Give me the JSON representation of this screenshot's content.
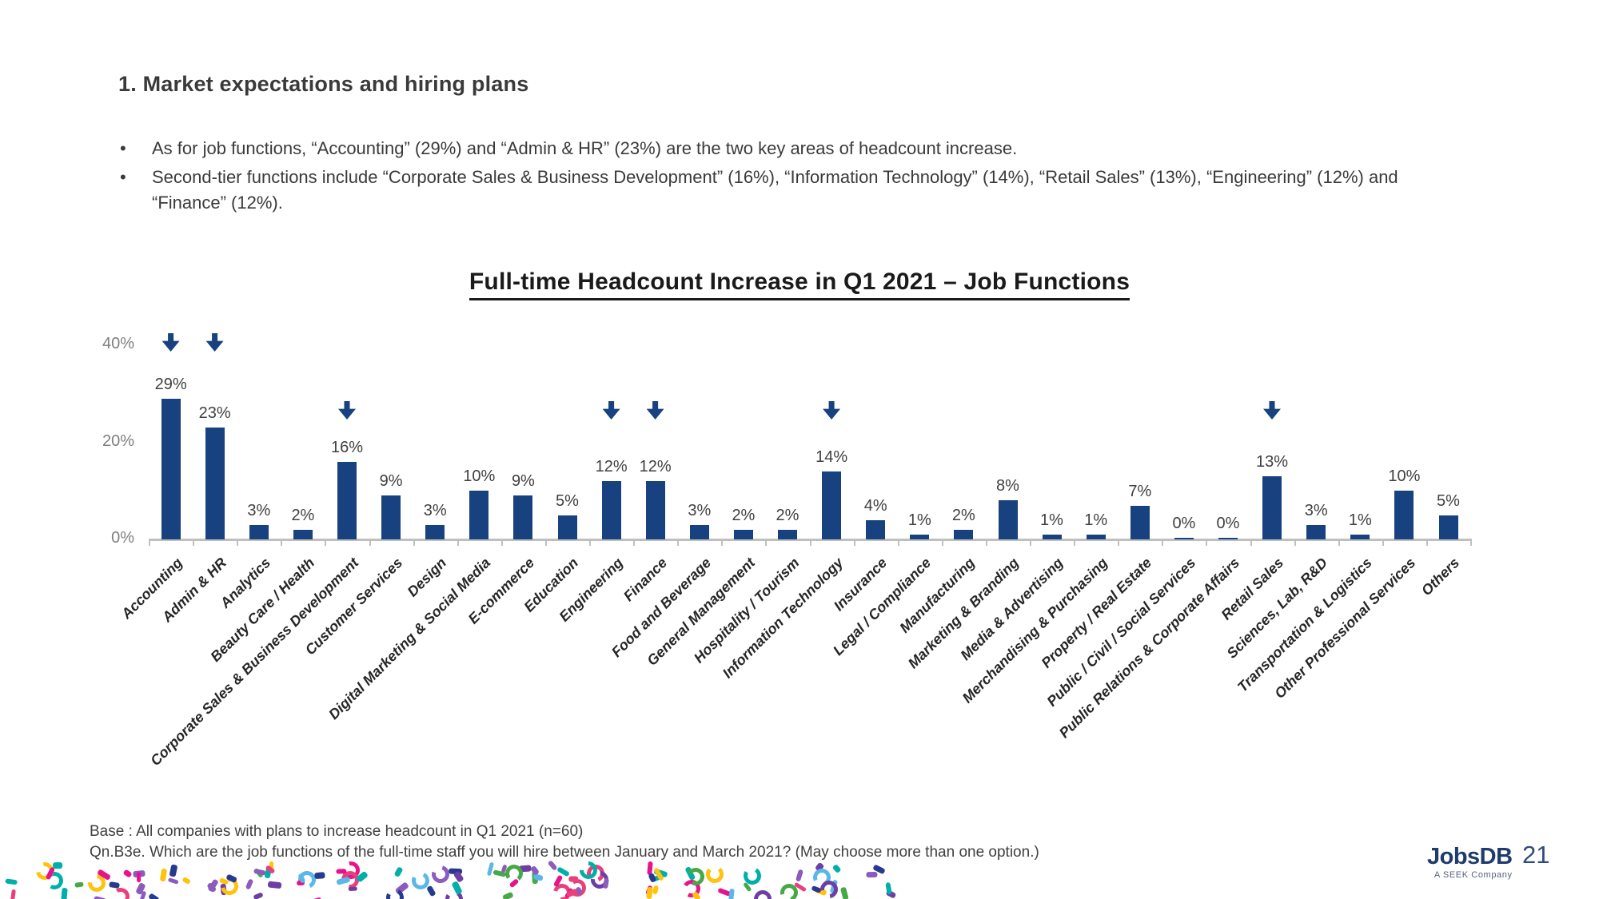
{
  "page": {
    "heading": "1. Market expectations and hiring plans",
    "bullets": [
      "As for job functions, “Accounting” (29%) and “Admin & HR” (23%) are the two key areas of headcount increase.",
      "Second-tier functions include “Corporate Sales & Business Development” (16%), “Information Technology” (14%), “Retail Sales” (13%), “Engineering” (12%) and “Finance” (12%)."
    ],
    "notes": [
      "Base : All companies with plans to increase headcount in Q1 2021 (n=60)",
      "Qn.B3e. Which are the job functions of the full-time staff you will hire between January and March 2021? (May choose more than one option.)"
    ],
    "logo": {
      "name": "JobsDB",
      "tagline": "A SEEK Company"
    },
    "page_number": "21"
  },
  "chart_data": {
    "type": "bar",
    "title": "Full-time Headcount Increase in Q1 2021 – Job Functions",
    "categories": [
      "Accounting",
      "Admin & HR",
      "Analytics",
      "Beauty Care / Health",
      "Corporate Sales & Business Development",
      "Customer Services",
      "Design",
      "Digital Marketing & Social Media",
      "E-commerce",
      "Education",
      "Engineering",
      "Finance",
      "Food and Beverage",
      "General Management",
      "Hospitality / Tourism",
      "Information Technology",
      "Insurance",
      "Legal / Compliance",
      "Manufacturing",
      "Marketing & Branding",
      "Media & Advertising",
      "Merchandising & Purchasing",
      "Property / Real Estate",
      "Public / Civil / Social Services",
      "Public Relations & Corporate Affairs",
      "Retail Sales",
      "Sciences, Lab, R&D",
      "Transportation & Logistics",
      "Other Professional Services",
      "Others"
    ],
    "values": [
      29,
      23,
      3,
      2,
      16,
      9,
      3,
      10,
      9,
      5,
      12,
      12,
      3,
      2,
      2,
      14,
      4,
      1,
      2,
      8,
      1,
      1,
      7,
      0,
      0,
      13,
      3,
      1,
      10,
      5
    ],
    "value_suffix": "%",
    "arrow_icon": "down-arrow-icon",
    "arrow_categories": [
      "Accounting",
      "Admin & HR",
      "Corporate Sales & Business Development",
      "Engineering",
      "Finance",
      "Information Technology",
      "Retail Sales"
    ],
    "ytick_labels": [
      "0%",
      "20%",
      "40%"
    ],
    "ytick_values": [
      0,
      20,
      40
    ],
    "ylim": [
      0,
      40
    ],
    "grid": false,
    "legend": false,
    "bar_color": "#17427F",
    "axis_color": "#BFBFBF",
    "value_label_color": "#404040",
    "ytick_color": "#7F7F7F"
  },
  "confetti_colors": [
    "#E6148C",
    "#00AFAA",
    "#8C5BC0",
    "#FFC20E",
    "#46A846",
    "#273B8E",
    "#5BB7E8",
    "#E8407A",
    "#6E3FA3"
  ]
}
